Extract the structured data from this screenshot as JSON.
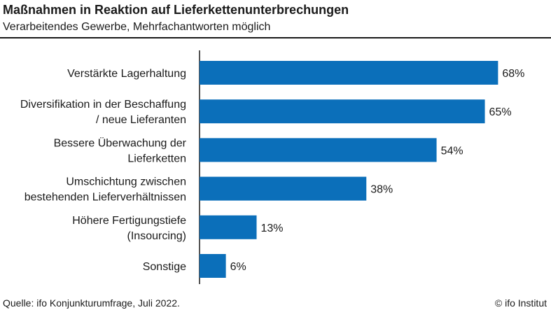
{
  "header": {
    "title": "Maßnahmen in Reaktion auf Lieferkettenunterbrechungen",
    "subtitle": "Verarbeitendes Gewerbe,  Mehrfachantworten möglich"
  },
  "footer": {
    "source": "Quelle: ifo Konjunkturumfrage, Juli 2022.",
    "credit": "© ifo Institut"
  },
  "chart_data": {
    "type": "bar",
    "orientation": "horizontal",
    "categories": [
      [
        "Verstärkte Lagerhaltung"
      ],
      [
        "Diversifikation in der Beschaffung",
        "/ neue Lieferanten"
      ],
      [
        "Bessere Überwachung der",
        "Lieferketten"
      ],
      [
        "Umschichtung zwischen",
        "bestehenden Lieferverhältnissen"
      ],
      [
        "Höhere Fertigungstiefe",
        "(Insourcing)"
      ],
      [
        "Sonstige"
      ]
    ],
    "values": [
      68,
      65,
      54,
      38,
      13,
      6
    ],
    "value_labels": [
      "68%",
      "65%",
      "54%",
      "38%",
      "13%",
      "6%"
    ],
    "unit": "%",
    "xlim": [
      0,
      100
    ],
    "grid": false,
    "bar_color": "#0b6fba"
  }
}
